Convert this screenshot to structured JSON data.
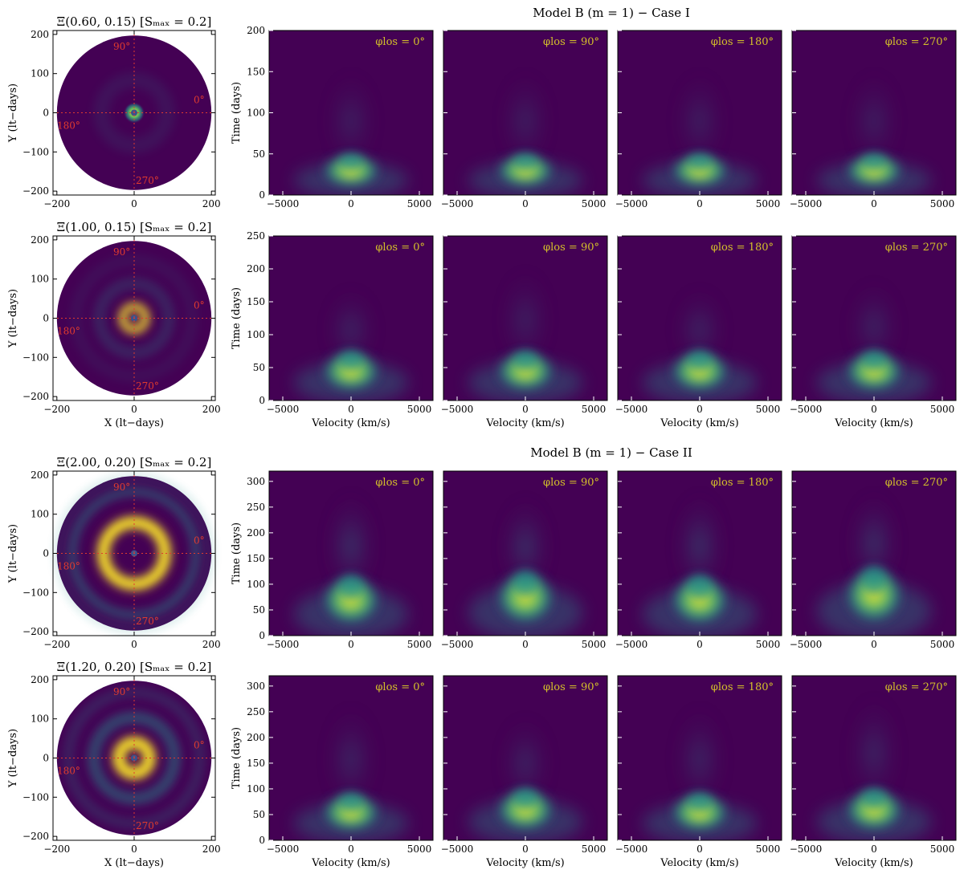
{
  "chart_data": [
    {
      "type": "heatmap",
      "title": "Model B (m = 1) − Case I",
      "rows": [
        {
          "disk": {
            "title": "Ξ(0.60, 0.15) [Sₘₐₓ = 0.2]",
            "xlim": [
              -210,
              210
            ],
            "ylim": [
              -210,
              210
            ],
            "xticks": [
              -200,
              0,
              200
            ],
            "yticks": [
              -200,
              -100,
              0,
              100,
              200
            ],
            "ylabel": "Y (lt−days)",
            "xlabel": "",
            "angle_labels": [
              "90°",
              "0°",
              "180°",
              "270°"
            ],
            "rings": [
              {
                "r": 0,
                "w": 28,
                "a": 1.0
              },
              {
                "r": 85,
                "w": 40,
                "a": 0.12
              }
            ],
            "center_hole": true
          },
          "tf": {
            "ylabel": "Time (days)",
            "xlabel": "",
            "xlim": [
              -6000,
              6000
            ],
            "ylim": [
              0,
              200
            ],
            "xticks": [
              -5000,
              0,
              5000
            ],
            "yticks": [
              0,
              50,
              100,
              150,
              200
            ],
            "panels": [
              {
                "label": "φlos = 0°",
                "arc_t": 30,
                "tail_t": 150,
                "tail_a": 0.3,
                "skew": 0
              },
              {
                "label": "φlos = 90°",
                "arc_t": 30,
                "tail_t": 150,
                "tail_a": 0.3,
                "skew": 0
              },
              {
                "label": "φlos = 180°",
                "arc_t": 30,
                "tail_t": 150,
                "tail_a": 0.3,
                "skew": 0
              },
              {
                "label": "φlos = 270°",
                "arc_t": 30,
                "tail_t": 150,
                "tail_a": 0.3,
                "skew": 0
              }
            ]
          }
        },
        {
          "disk": {
            "title": "Ξ(1.00, 0.15) [Sₘₐₓ = 0.2]",
            "xlim": [
              -210,
              210
            ],
            "ylim": [
              -210,
              210
            ],
            "xticks": [
              -200,
              0,
              200
            ],
            "yticks": [
              -200,
              -100,
              0,
              100,
              200
            ],
            "ylabel": "Y (lt−days)",
            "xlabel": "X (lt−days)",
            "angle_labels": [
              "90°",
              "0°",
              "180°",
              "270°"
            ],
            "rings": [
              {
                "r": 30,
                "w": 18,
                "a": 1.0
              },
              {
                "r": 90,
                "w": 30,
                "a": 0.25
              },
              {
                "r": 150,
                "w": 30,
                "a": 0.1
              }
            ],
            "center_hole": true
          },
          "tf": {
            "ylabel": "Time (days)",
            "xlabel": "Velocity (km/s)",
            "xlim": [
              -6000,
              6000
            ],
            "ylim": [
              0,
              250
            ],
            "xticks": [
              -5000,
              0,
              5000
            ],
            "yticks": [
              0,
              50,
              100,
              150,
              200,
              250
            ],
            "panels": [
              {
                "label": "φlos = 0°",
                "arc_t": 45,
                "tail_t": 170,
                "tail_a": 0.35,
                "skew": 0
              },
              {
                "label": "φlos = 90°",
                "arc_t": 45,
                "tail_t": 200,
                "tail_a": 0.3,
                "skew": 0
              },
              {
                "label": "φlos = 180°",
                "arc_t": 45,
                "tail_t": 170,
                "tail_a": 0.35,
                "skew": 0
              },
              {
                "label": "φlos = 270°",
                "arc_t": 45,
                "tail_t": 180,
                "tail_a": 0.35,
                "skew": 0
              }
            ]
          }
        }
      ]
    },
    {
      "type": "heatmap",
      "title": "Model B (m = 1) − Case II",
      "rows": [
        {
          "disk": {
            "title": "Ξ(2.00, 0.20) [Sₘₐₓ = 0.2]",
            "xlim": [
              -210,
              210
            ],
            "ylim": [
              -210,
              210
            ],
            "xticks": [
              -200,
              0,
              200
            ],
            "yticks": [
              -200,
              -100,
              0,
              100,
              200
            ],
            "ylabel": "Y (lt−days)",
            "xlabel": "",
            "angle_labels": [
              "90°",
              "0°",
              "180°",
              "270°"
            ],
            "rings": [
              {
                "r": 80,
                "w": 30,
                "a": 1.0
              },
              {
                "r": 160,
                "w": 20,
                "a": 0.55
              },
              {
                "r": 205,
                "w": 10,
                "a": 0.4
              }
            ],
            "center_hole": true
          },
          "tf": {
            "ylabel": "Time (days)",
            "xlabel": "",
            "xlim": [
              -6000,
              6000
            ],
            "ylim": [
              0,
              320
            ],
            "xticks": [
              -5000,
              0,
              5000
            ],
            "yticks": [
              0,
              50,
              100,
              150,
              200,
              250,
              300
            ],
            "panels": [
              {
                "label": "φlos = 0°",
                "arc_t": 70,
                "tail_t": 280,
                "tail_a": 0.45,
                "skew": 0
              },
              {
                "label": "φlos = 90°",
                "arc_t": 75,
                "tail_t": 270,
                "tail_a": 0.45,
                "skew": 0
              },
              {
                "label": "φlos = 180°",
                "arc_t": 70,
                "tail_t": 280,
                "tail_a": 0.45,
                "skew": 0
              },
              {
                "label": "φlos = 270°",
                "arc_t": 80,
                "tail_t": 280,
                "tail_a": 0.45,
                "skew": 0
              }
            ]
          }
        },
        {
          "disk": {
            "title": "Ξ(1.20, 0.20) [Sₘₐₓ = 0.2]",
            "xlim": [
              -210,
              210
            ],
            "ylim": [
              -210,
              210
            ],
            "xticks": [
              -200,
              0,
              200
            ],
            "yticks": [
              -200,
              -100,
              0,
              100,
              200
            ],
            "ylabel": "Y (lt−days)",
            "xlabel": "X (lt−days)",
            "angle_labels": [
              "90°",
              "0°",
              "180°",
              "270°"
            ],
            "rings": [
              {
                "r": 40,
                "w": 30,
                "a": 1.0
              },
              {
                "r": 105,
                "w": 30,
                "a": 0.5
              },
              {
                "r": 170,
                "w": 25,
                "a": 0.25
              }
            ],
            "center_hole": true
          },
          "tf": {
            "ylabel": "Time (days)",
            "xlabel": "Velocity (km/s)",
            "xlim": [
              -6000,
              6000
            ],
            "ylim": [
              0,
              320
            ],
            "xticks": [
              -5000,
              0,
              5000
            ],
            "yticks": [
              0,
              50,
              100,
              150,
              200,
              250,
              300
            ],
            "panels": [
              {
                "label": "φlos = 0°",
                "arc_t": 55,
                "tail_t": 260,
                "tail_a": 0.35,
                "skew": 0
              },
              {
                "label": "φlos = 90°",
                "arc_t": 60,
                "tail_t": 240,
                "tail_a": 0.35,
                "skew": 0
              },
              {
                "label": "φlos = 180°",
                "arc_t": 55,
                "tail_t": 260,
                "tail_a": 0.35,
                "skew": 0
              },
              {
                "label": "φlos = 270°",
                "arc_t": 60,
                "tail_t": 280,
                "tail_a": 0.35,
                "skew": 0
              }
            ]
          }
        }
      ]
    }
  ],
  "colors": {
    "viridis_low": "#440154",
    "viridis_mid": "#21918c",
    "viridis_high": "#fde725",
    "annotation": "#d4c02a",
    "crosshair": "#e03a2e"
  }
}
